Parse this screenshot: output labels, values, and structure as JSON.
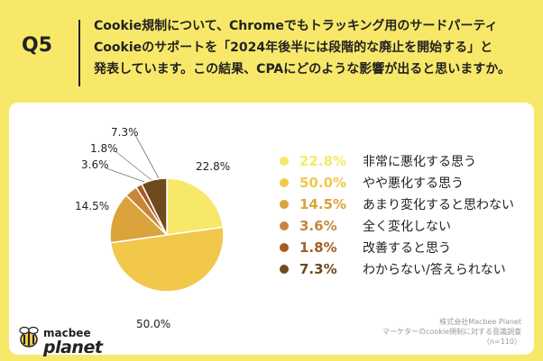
{
  "header": {
    "qnum": "Q5",
    "question": [
      "Cookie規制について、Chromeでもトラッキング用のサードパーティ",
      "Cookieのサポートを「2024年後半には段階的な廃止を開始する」と",
      "発表しています。この結果、CPAにどのような影響が出ると思いますか。"
    ]
  },
  "chart_data": {
    "type": "pie",
    "slices": [
      {
        "label": "非常に悪化する思う",
        "value": 22.8,
        "display": "22.8%",
        "color": "#f8e86a"
      },
      {
        "label": "やや悪化する思う",
        "value": 50.0,
        "display": "50.0%",
        "color": "#f1c84a"
      },
      {
        "label": "あまり変化すると思わない",
        "value": 14.5,
        "display": "14.5%",
        "color": "#dba33c"
      },
      {
        "label": "全く変化しない",
        "value": 3.6,
        "display": "3.6%",
        "color": "#c9853a"
      },
      {
        "label": "改善すると思う",
        "value": 1.8,
        "display": "1.8%",
        "color": "#a65c22"
      },
      {
        "label": "わからない/答えられない",
        "value": 7.3,
        "display": "7.3%",
        "color": "#6f4a1c"
      }
    ],
    "start": "12 o'clock",
    "direction": "clockwise",
    "legend_position": "right"
  },
  "logo": {
    "top": "macbee",
    "main": "planet"
  },
  "source": {
    "line1": "株式会社Macbee Planet",
    "line2": "マーケターのcookie規制に対する意識調査",
    "line3": "（n=110）"
  }
}
